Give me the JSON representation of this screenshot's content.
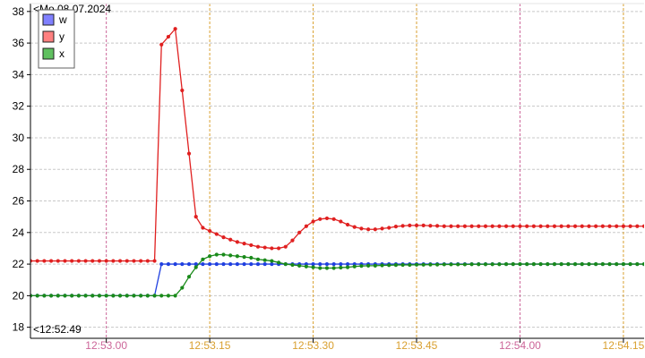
{
  "chart_data": {
    "type": "line",
    "start_date_label": "<Mo 08.07.2024",
    "start_time_label": "<12:52.49",
    "y_ticks": [
      18,
      20,
      22,
      24,
      26,
      28,
      30,
      32,
      34,
      36,
      38
    ],
    "ylim": [
      17.3,
      38.5
    ],
    "xlim": [
      "12:52.49",
      "12:54.18"
    ],
    "grid": true,
    "legend_position": "top-left",
    "x_ticks": [
      {
        "label": "12:53.00",
        "time": "12:53:00",
        "kind": "minor"
      },
      {
        "label": "12:53.15",
        "time": "12:53:15",
        "kind": "major"
      },
      {
        "label": "12:53.30",
        "time": "12:53:30",
        "kind": "major"
      },
      {
        "label": "12:53.45",
        "time": "12:53:45",
        "kind": "major"
      },
      {
        "label": "12:54.00",
        "time": "12:54:00",
        "kind": "minor"
      },
      {
        "label": "12:54.15",
        "time": "12:54:15",
        "kind": "major"
      }
    ],
    "tick_colors": {
      "minor": "#cc6699",
      "major": "#d9a030"
    },
    "series": [
      {
        "name": "w",
        "color": "#2040e0",
        "swatch": "#8080ff",
        "points": [
          [
            "12:52.49",
            20.0
          ],
          [
            "12:52.50",
            20.0
          ],
          [
            "12:52.51",
            20.0
          ],
          [
            "12:52.52",
            20.0
          ],
          [
            "12:52.53",
            20.0
          ],
          [
            "12:52.54",
            20.0
          ],
          [
            "12:52.55",
            20.0
          ],
          [
            "12:52.56",
            20.0
          ],
          [
            "12:52.57",
            20.0
          ],
          [
            "12:52.58",
            20.0
          ],
          [
            "12:52.59",
            20.0
          ],
          [
            "12:53.00",
            20.0
          ],
          [
            "12:53.01",
            20.0
          ],
          [
            "12:53.02",
            20.0
          ],
          [
            "12:53.03",
            20.0
          ],
          [
            "12:53.04",
            20.0
          ],
          [
            "12:53.05",
            20.0
          ],
          [
            "12:53.06",
            20.0
          ],
          [
            "12:53.07",
            20.0
          ],
          [
            "12:53.08",
            22.0
          ],
          [
            "12:53.09",
            22.0
          ],
          [
            "12:53.10",
            22.0
          ],
          [
            "12:53.11",
            22.0
          ],
          [
            "12:53.12",
            22.0
          ],
          [
            "12:53.13",
            22.0
          ],
          [
            "12:53.14",
            22.0
          ],
          [
            "12:53.15",
            22.0
          ],
          [
            "12:53.16",
            22.0
          ],
          [
            "12:53.17",
            22.0
          ],
          [
            "12:53.18",
            22.0
          ],
          [
            "12:53.19",
            22.0
          ],
          [
            "12:53.20",
            22.0
          ],
          [
            "12:53.21",
            22.0
          ],
          [
            "12:53.22",
            22.0
          ],
          [
            "12:53.23",
            22.0
          ],
          [
            "12:53.24",
            22.0
          ],
          [
            "12:53.25",
            22.0
          ],
          [
            "12:53.26",
            22.0
          ],
          [
            "12:53.27",
            22.0
          ],
          [
            "12:53.28",
            22.0
          ],
          [
            "12:53.29",
            22.0
          ],
          [
            "12:53.30",
            22.0
          ],
          [
            "12:53.31",
            22.0
          ],
          [
            "12:53.32",
            22.0
          ],
          [
            "12:53.33",
            22.0
          ],
          [
            "12:53.34",
            22.0
          ],
          [
            "12:53.35",
            22.0
          ],
          [
            "12:53.36",
            22.0
          ],
          [
            "12:53.37",
            22.0
          ],
          [
            "12:53.38",
            22.0
          ],
          [
            "12:53.39",
            22.0
          ],
          [
            "12:53.40",
            22.0
          ],
          [
            "12:53.41",
            22.0
          ],
          [
            "12:53.42",
            22.0
          ],
          [
            "12:53.43",
            22.0
          ],
          [
            "12:53.44",
            22.0
          ],
          [
            "12:53.45",
            22.0
          ],
          [
            "12:53.46",
            22.0
          ],
          [
            "12:53.47",
            22.0
          ],
          [
            "12:53.48",
            22.0
          ],
          [
            "12:53.49",
            22.0
          ],
          [
            "12:53.50",
            22.0
          ],
          [
            "12:53.51",
            22.0
          ],
          [
            "12:53.52",
            22.0
          ],
          [
            "12:53.53",
            22.0
          ],
          [
            "12:53.54",
            22.0
          ],
          [
            "12:53.55",
            22.0
          ],
          [
            "12:53.56",
            22.0
          ],
          [
            "12:53.57",
            22.0
          ],
          [
            "12:53.58",
            22.0
          ],
          [
            "12:53.59",
            22.0
          ],
          [
            "12:54.00",
            22.0
          ],
          [
            "12:54.01",
            22.0
          ],
          [
            "12:54.02",
            22.0
          ],
          [
            "12:54.03",
            22.0
          ],
          [
            "12:54.04",
            22.0
          ],
          [
            "12:54.05",
            22.0
          ],
          [
            "12:54.06",
            22.0
          ],
          [
            "12:54.07",
            22.0
          ],
          [
            "12:54.08",
            22.0
          ],
          [
            "12:54.09",
            22.0
          ],
          [
            "12:54.10",
            22.0
          ],
          [
            "12:54.11",
            22.0
          ],
          [
            "12:54.12",
            22.0
          ],
          [
            "12:54.13",
            22.0
          ],
          [
            "12:54.14",
            22.0
          ],
          [
            "12:54.15",
            22.0
          ],
          [
            "12:54.16",
            22.0
          ],
          [
            "12:54.17",
            22.0
          ],
          [
            "12:54.18",
            22.0
          ]
        ]
      },
      {
        "name": "y",
        "color": "#e02020",
        "swatch": "#ff8080",
        "points": [
          [
            "12:52.49",
            22.2
          ],
          [
            "12:52.50",
            22.2
          ],
          [
            "12:52.51",
            22.2
          ],
          [
            "12:52.52",
            22.2
          ],
          [
            "12:52.53",
            22.2
          ],
          [
            "12:52.54",
            22.2
          ],
          [
            "12:52.55",
            22.2
          ],
          [
            "12:52.56",
            22.2
          ],
          [
            "12:52.57",
            22.2
          ],
          [
            "12:52.58",
            22.2
          ],
          [
            "12:52.59",
            22.2
          ],
          [
            "12:53.00",
            22.2
          ],
          [
            "12:53.01",
            22.2
          ],
          [
            "12:53.02",
            22.2
          ],
          [
            "12:53.03",
            22.2
          ],
          [
            "12:53.04",
            22.2
          ],
          [
            "12:53.05",
            22.2
          ],
          [
            "12:53.06",
            22.2
          ],
          [
            "12:53.07",
            22.2
          ],
          [
            "12:53.08",
            35.9
          ],
          [
            "12:53.09",
            36.4
          ],
          [
            "12:53.10",
            36.9
          ],
          [
            "12:53.11",
            33.0
          ],
          [
            "12:53.12",
            29.0
          ],
          [
            "12:53.13",
            25.0
          ],
          [
            "12:53.14",
            24.3
          ],
          [
            "12:53.15",
            24.1
          ],
          [
            "12:53.16",
            23.9
          ],
          [
            "12:53.17",
            23.7
          ],
          [
            "12:53.18",
            23.55
          ],
          [
            "12:53.19",
            23.4
          ],
          [
            "12:53.20",
            23.3
          ],
          [
            "12:53.21",
            23.2
          ],
          [
            "12:53.22",
            23.1
          ],
          [
            "12:53.23",
            23.05
          ],
          [
            "12:53.24",
            23.0
          ],
          [
            "12:53.25",
            23.0
          ],
          [
            "12:53.26",
            23.1
          ],
          [
            "12:53.27",
            23.5
          ],
          [
            "12:53.28",
            24.0
          ],
          [
            "12:53.29",
            24.4
          ],
          [
            "12:53.30",
            24.7
          ],
          [
            "12:53.31",
            24.85
          ],
          [
            "12:53.32",
            24.9
          ],
          [
            "12:53.33",
            24.85
          ],
          [
            "12:53.34",
            24.7
          ],
          [
            "12:53.35",
            24.5
          ],
          [
            "12:53.36",
            24.35
          ],
          [
            "12:53.37",
            24.25
          ],
          [
            "12:53.38",
            24.2
          ],
          [
            "12:53.39",
            24.2
          ],
          [
            "12:53.40",
            24.25
          ],
          [
            "12:53.41",
            24.3
          ],
          [
            "12:53.42",
            24.38
          ],
          [
            "12:53.43",
            24.42
          ],
          [
            "12:53.44",
            24.45
          ],
          [
            "12:53.45",
            24.45
          ],
          [
            "12:53.46",
            24.45
          ],
          [
            "12:53.47",
            24.43
          ],
          [
            "12:53.48",
            24.42
          ],
          [
            "12:53.49",
            24.4
          ],
          [
            "12:53.50",
            24.4
          ],
          [
            "12:53.51",
            24.4
          ],
          [
            "12:53.52",
            24.4
          ],
          [
            "12:53.53",
            24.4
          ],
          [
            "12:53.54",
            24.4
          ],
          [
            "12:53.55",
            24.4
          ],
          [
            "12:53.56",
            24.4
          ],
          [
            "12:53.57",
            24.4
          ],
          [
            "12:53.58",
            24.4
          ],
          [
            "12:53.59",
            24.4
          ],
          [
            "12:54.00",
            24.4
          ],
          [
            "12:54.01",
            24.4
          ],
          [
            "12:54.02",
            24.4
          ],
          [
            "12:54.03",
            24.4
          ],
          [
            "12:54.04",
            24.4
          ],
          [
            "12:54.05",
            24.4
          ],
          [
            "12:54.06",
            24.4
          ],
          [
            "12:54.07",
            24.4
          ],
          [
            "12:54.08",
            24.4
          ],
          [
            "12:54.09",
            24.4
          ],
          [
            "12:54.10",
            24.4
          ],
          [
            "12:54.11",
            24.4
          ],
          [
            "12:54.12",
            24.4
          ],
          [
            "12:54.13",
            24.4
          ],
          [
            "12:54.14",
            24.4
          ],
          [
            "12:54.15",
            24.4
          ],
          [
            "12:54.16",
            24.4
          ],
          [
            "12:54.17",
            24.4
          ],
          [
            "12:54.18",
            24.4
          ]
        ]
      },
      {
        "name": "x",
        "color": "#1a8a1a",
        "swatch": "#60c060",
        "points": [
          [
            "12:52.49",
            20.0
          ],
          [
            "12:52.50",
            20.0
          ],
          [
            "12:52.51",
            20.0
          ],
          [
            "12:52.52",
            20.0
          ],
          [
            "12:52.53",
            20.0
          ],
          [
            "12:52.54",
            20.0
          ],
          [
            "12:52.55",
            20.0
          ],
          [
            "12:52.56",
            20.0
          ],
          [
            "12:52.57",
            20.0
          ],
          [
            "12:52.58",
            20.0
          ],
          [
            "12:52.59",
            20.0
          ],
          [
            "12:53.00",
            20.0
          ],
          [
            "12:53.01",
            20.0
          ],
          [
            "12:53.02",
            20.0
          ],
          [
            "12:53.03",
            20.0
          ],
          [
            "12:53.04",
            20.0
          ],
          [
            "12:53.05",
            20.0
          ],
          [
            "12:53.06",
            20.0
          ],
          [
            "12:53.07",
            20.0
          ],
          [
            "12:53.08",
            20.0
          ],
          [
            "12:53.09",
            20.0
          ],
          [
            "12:53.10",
            20.0
          ],
          [
            "12:53.11",
            20.5
          ],
          [
            "12:53.12",
            21.2
          ],
          [
            "12:53.13",
            21.8
          ],
          [
            "12:53.14",
            22.3
          ],
          [
            "12:53.15",
            22.5
          ],
          [
            "12:53.16",
            22.6
          ],
          [
            "12:53.17",
            22.6
          ],
          [
            "12:53.18",
            22.55
          ],
          [
            "12:53.19",
            22.5
          ],
          [
            "12:53.20",
            22.45
          ],
          [
            "12:53.21",
            22.4
          ],
          [
            "12:53.22",
            22.3
          ],
          [
            "12:53.23",
            22.25
          ],
          [
            "12:53.24",
            22.2
          ],
          [
            "12:53.25",
            22.1
          ],
          [
            "12:53.26",
            22.0
          ],
          [
            "12:53.27",
            21.95
          ],
          [
            "12:53.28",
            21.9
          ],
          [
            "12:53.29",
            21.85
          ],
          [
            "12:53.30",
            21.8
          ],
          [
            "12:53.31",
            21.75
          ],
          [
            "12:53.32",
            21.75
          ],
          [
            "12:53.33",
            21.75
          ],
          [
            "12:53.34",
            21.78
          ],
          [
            "12:53.35",
            21.8
          ],
          [
            "12:53.36",
            21.85
          ],
          [
            "12:53.37",
            21.88
          ],
          [
            "12:53.38",
            21.9
          ],
          [
            "12:53.39",
            21.9
          ],
          [
            "12:53.40",
            21.92
          ],
          [
            "12:53.41",
            21.93
          ],
          [
            "12:53.42",
            21.94
          ],
          [
            "12:53.43",
            21.95
          ],
          [
            "12:53.44",
            21.95
          ],
          [
            "12:53.45",
            21.96
          ],
          [
            "12:53.46",
            21.96
          ],
          [
            "12:53.47",
            21.97
          ],
          [
            "12:53.48",
            21.97
          ],
          [
            "12:53.49",
            21.98
          ],
          [
            "12:53.50",
            21.98
          ],
          [
            "12:53.51",
            21.98
          ],
          [
            "12:53.52",
            21.98
          ],
          [
            "12:53.53",
            21.99
          ],
          [
            "12:53.54",
            21.99
          ],
          [
            "12:53.55",
            21.99
          ],
          [
            "12:53.56",
            21.99
          ],
          [
            "12:53.57",
            21.99
          ],
          [
            "12:53.58",
            22.0
          ],
          [
            "12:53.59",
            22.0
          ],
          [
            "12:54.00",
            22.0
          ],
          [
            "12:54.01",
            22.0
          ],
          [
            "12:54.02",
            22.0
          ],
          [
            "12:54.03",
            22.0
          ],
          [
            "12:54.04",
            22.0
          ],
          [
            "12:54.05",
            22.0
          ],
          [
            "12:54.06",
            22.0
          ],
          [
            "12:54.07",
            22.0
          ],
          [
            "12:54.08",
            22.0
          ],
          [
            "12:54.09",
            22.0
          ],
          [
            "12:54.10",
            22.0
          ],
          [
            "12:54.11",
            22.0
          ],
          [
            "12:54.12",
            22.0
          ],
          [
            "12:54.13",
            22.0
          ],
          [
            "12:54.14",
            22.0
          ],
          [
            "12:54.15",
            22.0
          ],
          [
            "12:54.16",
            22.0
          ],
          [
            "12:54.17",
            22.0
          ],
          [
            "12:54.18",
            22.0
          ]
        ]
      }
    ]
  }
}
